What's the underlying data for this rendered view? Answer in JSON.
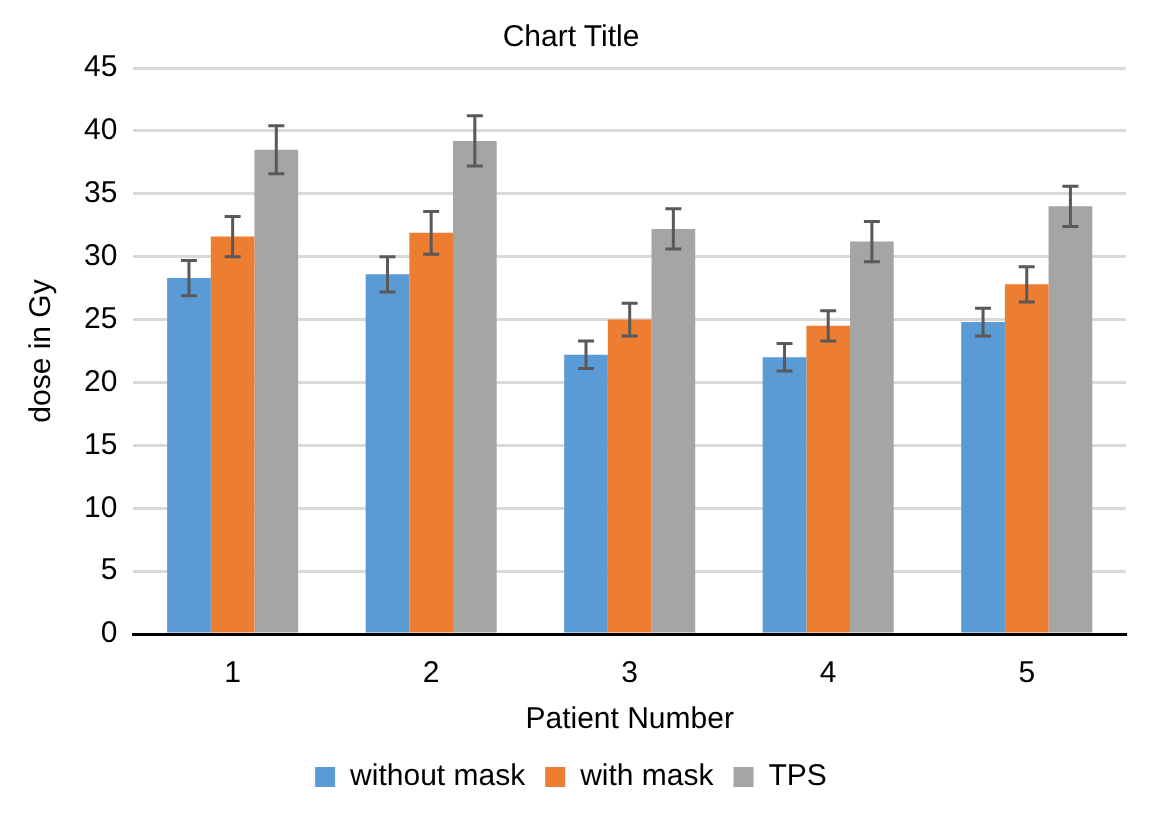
{
  "chart_data": {
    "type": "bar",
    "title": "Chart Title",
    "xlabel": "Patient Number",
    "ylabel": "dose in Gy",
    "categories": [
      "1",
      "2",
      "3",
      "4",
      "5"
    ],
    "series": [
      {
        "name": "without mask",
        "color": "#5b9bd5",
        "values": [
          28.3,
          28.6,
          22.2,
          22.0,
          24.8
        ],
        "errors": [
          1.4,
          1.4,
          1.1,
          1.1,
          1.1
        ]
      },
      {
        "name": "with mask",
        "color": "#ed7d31",
        "values": [
          31.6,
          31.9,
          25.0,
          24.5,
          27.8
        ],
        "errors": [
          1.6,
          1.7,
          1.3,
          1.2,
          1.4
        ]
      },
      {
        "name": "TPS",
        "color": "#a5a5a5",
        "values": [
          38.5,
          39.2,
          32.2,
          31.2,
          34.0
        ],
        "errors": [
          1.9,
          2.0,
          1.6,
          1.6,
          1.6
        ]
      }
    ],
    "ylim": [
      0,
      45
    ],
    "yticks": [
      0,
      5,
      10,
      15,
      20,
      25,
      30,
      35,
      40,
      45
    ],
    "grid": "y",
    "legend": "bottom"
  }
}
